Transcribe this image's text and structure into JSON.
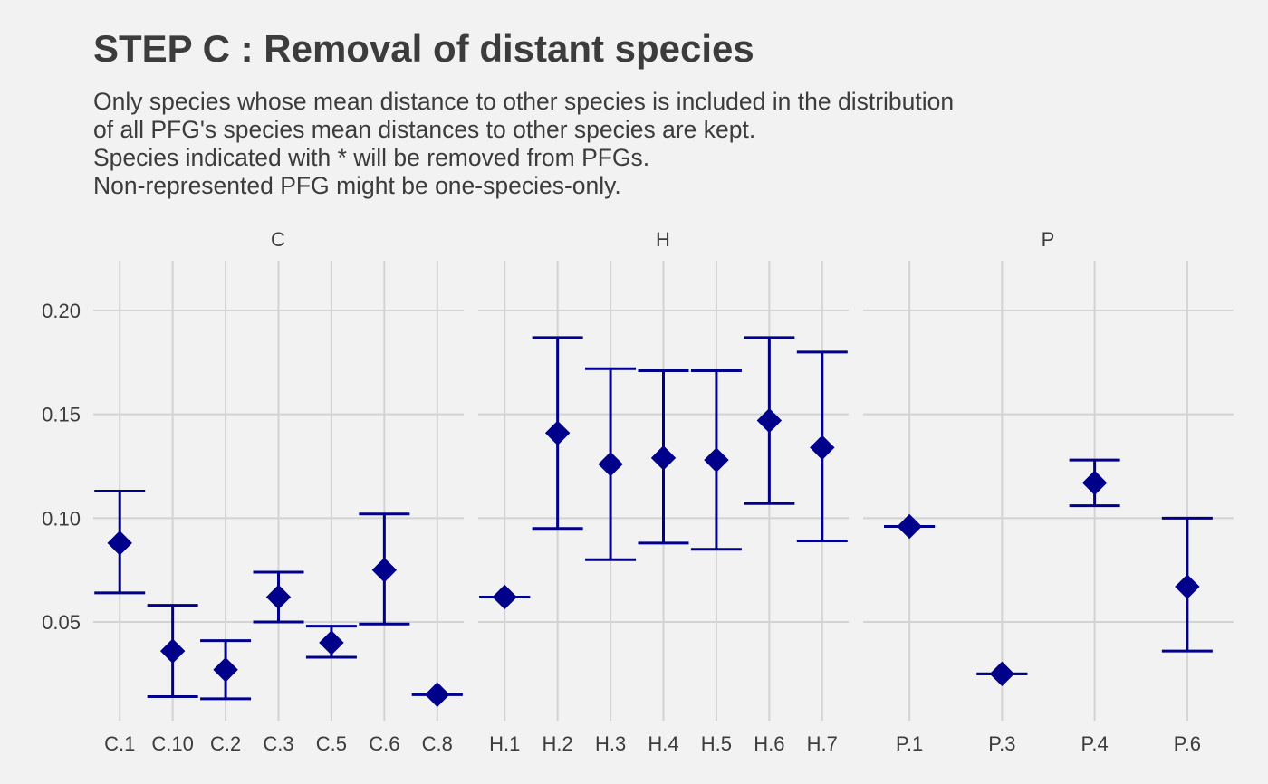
{
  "title": "STEP C : Removal of distant species",
  "subtitle_lines": [
    "Only species whose mean distance to other species is included in the distribution",
    "of all PFG's species mean distances to other species are kept.",
    "Species indicated with * will be removed from PFGs.",
    "Non-represented PFG might be one-species-only."
  ],
  "colors": {
    "background": "#f2f2f2",
    "grid": "#d3d3d3",
    "series": "#00008b",
    "text": "#3c3c3c"
  },
  "chart_data": {
    "type": "errorbar",
    "marker": "diamond",
    "grid": true,
    "y_ticks": [
      "0.05",
      "0.10",
      "0.15",
      "0.20"
    ],
    "ylim": [
      0.004,
      0.224
    ],
    "facets": [
      {
        "label": "C",
        "points": [
          {
            "x": "C.1",
            "y": 0.088,
            "ymin": 0.064,
            "ymax": 0.113
          },
          {
            "x": "C.10",
            "y": 0.036,
            "ymin": 0.014,
            "ymax": 0.058
          },
          {
            "x": "C.2",
            "y": 0.027,
            "ymin": 0.013,
            "ymax": 0.041
          },
          {
            "x": "C.3",
            "y": 0.062,
            "ymin": 0.05,
            "ymax": 0.074
          },
          {
            "x": "C.5",
            "y": 0.04,
            "ymin": 0.033,
            "ymax": 0.048
          },
          {
            "x": "C.6",
            "y": 0.075,
            "ymin": 0.049,
            "ymax": 0.102
          },
          {
            "x": "C.8",
            "y": 0.015,
            "ymin": 0.015,
            "ymax": 0.015
          }
        ]
      },
      {
        "label": "H",
        "points": [
          {
            "x": "H.1",
            "y": 0.062,
            "ymin": 0.062,
            "ymax": 0.062
          },
          {
            "x": "H.2",
            "y": 0.141,
            "ymin": 0.095,
            "ymax": 0.187
          },
          {
            "x": "H.3",
            "y": 0.126,
            "ymin": 0.08,
            "ymax": 0.172
          },
          {
            "x": "H.4",
            "y": 0.129,
            "ymin": 0.088,
            "ymax": 0.171
          },
          {
            "x": "H.5",
            "y": 0.128,
            "ymin": 0.085,
            "ymax": 0.171
          },
          {
            "x": "H.6",
            "y": 0.147,
            "ymin": 0.107,
            "ymax": 0.187
          },
          {
            "x": "H.7",
            "y": 0.134,
            "ymin": 0.089,
            "ymax": 0.18
          }
        ]
      },
      {
        "label": "P",
        "points": [
          {
            "x": "P.1",
            "y": 0.096,
            "ymin": 0.096,
            "ymax": 0.096
          },
          {
            "x": "P.3",
            "y": 0.025,
            "ymin": 0.025,
            "ymax": 0.025
          },
          {
            "x": "P.4",
            "y": 0.117,
            "ymin": 0.106,
            "ymax": 0.128
          },
          {
            "x": "P.6",
            "y": 0.067,
            "ymin": 0.036,
            "ymax": 0.1
          }
        ]
      }
    ]
  }
}
